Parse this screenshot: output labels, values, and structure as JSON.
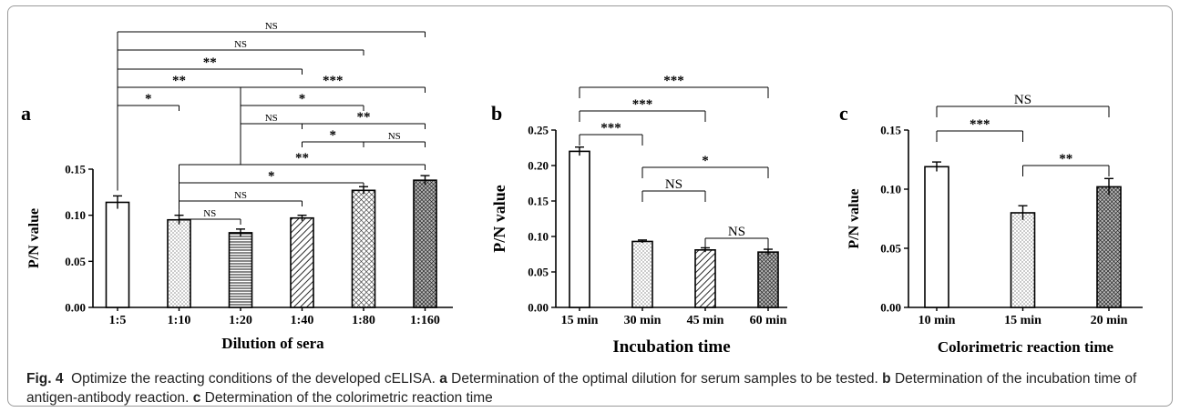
{
  "caption": {
    "label": "Fig. 4",
    "intro": "Optimize the reacting conditions of the developed cELISA.",
    "parts": [
      {
        "letter": "a",
        "text": "Determination of the optimal dilution for serum samples to be tested."
      },
      {
        "letter": "b",
        "text": "Determination of the incubation time of antigen-antibody reaction."
      },
      {
        "letter": "c",
        "text": "Determination of the colorimetric reaction time"
      }
    ]
  },
  "chart_data": [
    {
      "panel": "a",
      "type": "bar",
      "xlabel": "Dilution of sera",
      "ylabel": "P/N value",
      "ylim": [
        0,
        0.15
      ],
      "yticks": [
        "0.00",
        "0.05",
        "0.10",
        "0.15"
      ],
      "categories": [
        "1:5",
        "1:10",
        "1:20",
        "1:40",
        "1:80",
        "1:160"
      ],
      "values": [
        0.114,
        0.095,
        0.081,
        0.097,
        0.127,
        0.138
      ],
      "errors": [
        0.007,
        0.005,
        0.004,
        0.003,
        0.004,
        0.005
      ],
      "patterns": [
        "none",
        "dots",
        "hlines",
        "diag",
        "crosshatch",
        "dense"
      ],
      "comparisons": [
        {
          "a": 0,
          "b": 5,
          "label": "NS"
        },
        {
          "a": 0,
          "b": 4,
          "label": "NS"
        },
        {
          "a": 0,
          "b": 3,
          "label": "**"
        },
        {
          "a": 0,
          "b": 2,
          "label": "**"
        },
        {
          "a": 0,
          "b": 1,
          "label": "*"
        },
        {
          "a": 2,
          "b": 5,
          "label": "***"
        },
        {
          "a": 2,
          "b": 4,
          "label": "*"
        },
        {
          "a": 2,
          "b": 3,
          "label": "NS"
        },
        {
          "a": 3,
          "b": 5,
          "label": "**"
        },
        {
          "a": 3,
          "b": 4,
          "label": "*"
        },
        {
          "a": 4,
          "b": 5,
          "label": "NS"
        },
        {
          "a": 1,
          "b": 5,
          "label": "**"
        },
        {
          "a": 1,
          "b": 4,
          "label": "*"
        },
        {
          "a": 1,
          "b": 3,
          "label": "NS"
        },
        {
          "a": 1,
          "b": 2,
          "label": "NS"
        }
      ]
    },
    {
      "panel": "b",
      "type": "bar",
      "xlabel": "Incubation time",
      "ylabel": "P/N value",
      "ylim": [
        0,
        0.25
      ],
      "yticks": [
        "0.00",
        "0.05",
        "0.10",
        "0.15",
        "0.20",
        "0.25"
      ],
      "categories": [
        "15 min",
        "30 min",
        "45 min",
        "60 min"
      ],
      "values": [
        0.22,
        0.093,
        0.081,
        0.078
      ],
      "errors": [
        0.006,
        0.002,
        0.003,
        0.004
      ],
      "patterns": [
        "none",
        "dots",
        "diag",
        "dense"
      ],
      "comparisons": [
        {
          "a": 0,
          "b": 3,
          "label": "***"
        },
        {
          "a": 0,
          "b": 2,
          "label": "***"
        },
        {
          "a": 0,
          "b": 1,
          "label": "***"
        },
        {
          "a": 1,
          "b": 3,
          "label": "*"
        },
        {
          "a": 1,
          "b": 2,
          "label": "NS"
        },
        {
          "a": 2,
          "b": 3,
          "label": "NS"
        }
      ]
    },
    {
      "panel": "c",
      "type": "bar",
      "xlabel": "Colorimetric reaction time",
      "ylabel": "P/N value",
      "ylim": [
        0,
        0.15
      ],
      "yticks": [
        "0.00",
        "0.05",
        "0.10",
        "0.15"
      ],
      "categories": [
        "10 min",
        "15 min",
        "20 min"
      ],
      "values": [
        0.119,
        0.08,
        0.102
      ],
      "errors": [
        0.004,
        0.006,
        0.007
      ],
      "patterns": [
        "none",
        "dots",
        "dense"
      ],
      "comparisons": [
        {
          "a": 0,
          "b": 2,
          "label": "NS"
        },
        {
          "a": 0,
          "b": 1,
          "label": "***"
        },
        {
          "a": 1,
          "b": 2,
          "label": "**"
        }
      ]
    }
  ]
}
